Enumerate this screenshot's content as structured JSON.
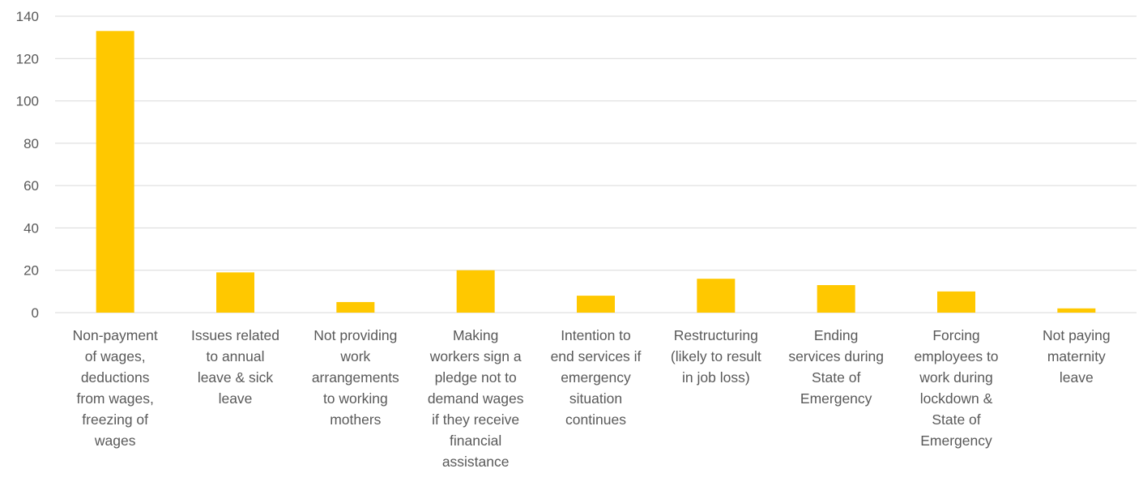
{
  "chart_data": {
    "type": "bar",
    "title": "",
    "xlabel": "",
    "ylabel": "",
    "ylim": [
      0,
      140
    ],
    "yticks": [
      0,
      20,
      40,
      60,
      80,
      100,
      120,
      140
    ],
    "grid": true,
    "legend": "none",
    "bar_color": "#ffc800",
    "categories": [
      [
        "Non-payment",
        "of wages,",
        "deductions",
        "from wages,",
        "freezing of",
        "wages"
      ],
      [
        "Issues related",
        "to annual",
        "leave & sick",
        "leave"
      ],
      [
        "Not providing",
        "work",
        "arrangements",
        "to working",
        "mothers"
      ],
      [
        "Making",
        "workers sign a",
        "pledge not to",
        "demand wages",
        "if they receive",
        "financial",
        "assistance"
      ],
      [
        "Intention to",
        "end services if",
        "emergency",
        "situation",
        "continues"
      ],
      [
        "Restructuring",
        "(likely to result",
        "in job loss)"
      ],
      [
        "Ending",
        "services during",
        "State of",
        "Emergency"
      ],
      [
        "Forcing",
        "employees to",
        "work during",
        "lockdown &",
        "State of",
        "Emergency"
      ],
      [
        "Not paying",
        "maternity",
        "leave"
      ]
    ],
    "values": [
      133,
      19,
      5,
      20,
      8,
      16,
      13,
      10,
      2
    ]
  }
}
